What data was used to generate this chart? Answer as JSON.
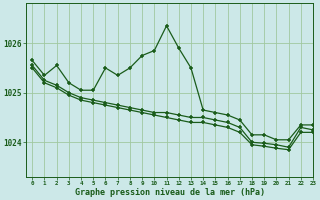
{
  "bg_color": "#cce8e8",
  "plot_bg_color": "#cce8e8",
  "line_color": "#1a5c1a",
  "grid_color": "#a0c8a0",
  "xlabel": "Graphe pression niveau de la mer (hPa)",
  "xlim": [
    -0.5,
    23
  ],
  "ylim": [
    1023.3,
    1026.8
  ],
  "yticks": [
    1024,
    1025,
    1026
  ],
  "xticks": [
    0,
    1,
    2,
    3,
    4,
    5,
    6,
    7,
    8,
    9,
    10,
    11,
    12,
    13,
    14,
    15,
    16,
    17,
    18,
    19,
    20,
    21,
    22,
    23
  ],
  "line1_x": [
    0,
    1,
    2,
    3,
    4,
    5,
    6,
    7,
    8,
    9,
    10,
    11,
    12,
    13,
    14,
    15,
    16,
    17,
    18,
    19,
    20,
    21,
    22,
    23
  ],
  "line1_y": [
    1025.65,
    1025.35,
    1025.55,
    1025.2,
    1025.05,
    1025.05,
    1025.5,
    1025.35,
    1025.5,
    1025.75,
    1025.85,
    1026.35,
    1025.9,
    1025.5,
    1024.65,
    1024.6,
    1024.55,
    1024.45,
    1024.15,
    1024.15,
    1024.05,
    1024.05,
    1024.35,
    1024.35
  ],
  "line2_x": [
    0,
    1,
    2,
    3,
    4,
    5,
    6,
    7,
    8,
    9,
    10,
    11,
    12,
    13,
    14,
    15,
    16,
    17,
    18,
    19,
    20,
    21,
    22,
    23
  ],
  "line2_y": [
    1025.55,
    1025.25,
    1025.15,
    1025.0,
    1024.9,
    1024.85,
    1024.8,
    1024.75,
    1024.7,
    1024.65,
    1024.6,
    1024.6,
    1024.55,
    1024.5,
    1024.5,
    1024.45,
    1024.4,
    1024.3,
    1024.0,
    1023.98,
    1023.95,
    1023.9,
    1024.3,
    1024.25
  ],
  "line3_x": [
    0,
    1,
    2,
    3,
    4,
    5,
    6,
    7,
    8,
    9,
    10,
    11,
    12,
    13,
    14,
    15,
    16,
    17,
    18,
    19,
    20,
    21,
    22,
    23
  ],
  "line3_y": [
    1025.5,
    1025.2,
    1025.1,
    1024.95,
    1024.85,
    1024.8,
    1024.75,
    1024.7,
    1024.65,
    1024.6,
    1024.55,
    1024.5,
    1024.45,
    1024.4,
    1024.4,
    1024.35,
    1024.3,
    1024.2,
    1023.95,
    1023.92,
    1023.88,
    1023.85,
    1024.2,
    1024.2
  ],
  "marker": "+",
  "markersize": 3.5,
  "linewidth": 0.9,
  "xlabel_fontsize": 6.0,
  "xtick_fontsize": 4.2,
  "ytick_fontsize": 5.5
}
